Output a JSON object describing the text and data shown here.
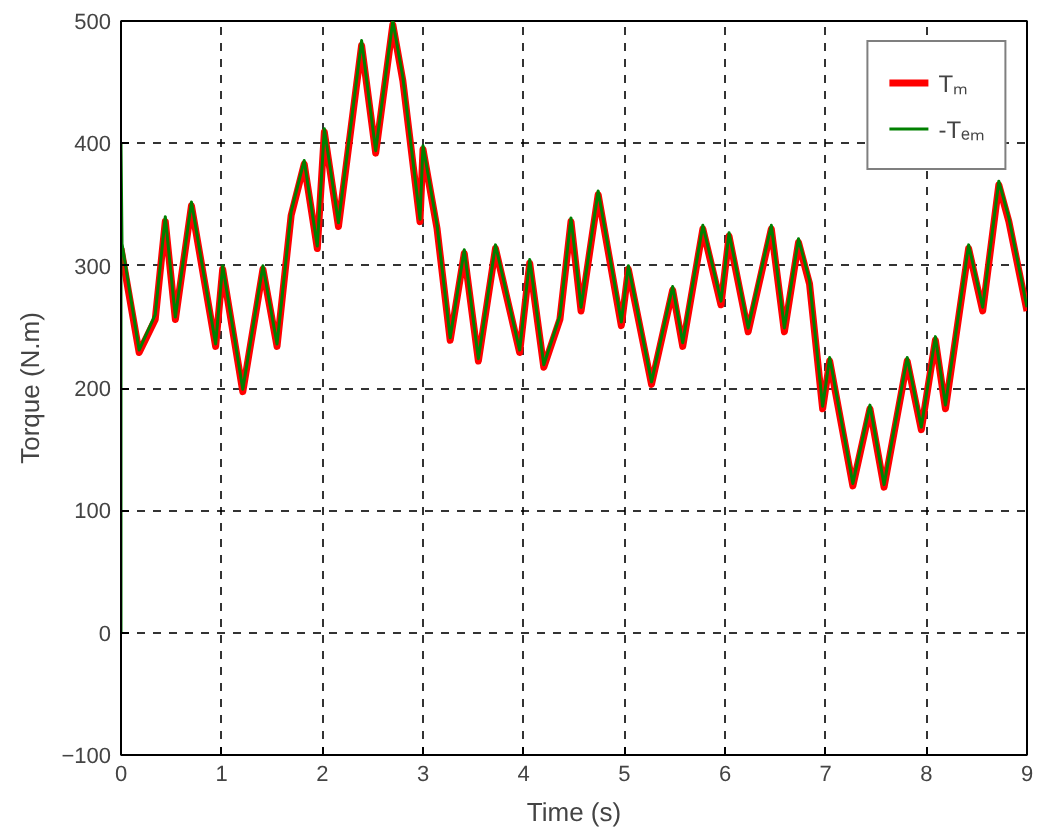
{
  "chart_data": {
    "type": "line",
    "xlabel": "Time (s)",
    "ylabel": "Torque (N.m)",
    "xlim": [
      0,
      9
    ],
    "ylim": [
      -100,
      500
    ],
    "xticks": [
      0,
      1,
      2,
      3,
      4,
      5,
      6,
      7,
      8,
      9
    ],
    "yticks": [
      -100,
      0,
      100,
      200,
      300,
      400,
      500
    ],
    "grid": true,
    "legend": "top right",
    "line_style": "solid",
    "x": [
      0,
      0.18,
      0.34,
      0.44,
      0.54,
      0.7,
      0.94,
      1.01,
      1.21,
      1.41,
      1.55,
      1.69,
      1.82,
      1.95,
      2.02,
      2.16,
      2.39,
      2.53,
      2.7,
      2.8,
      2.97,
      3.0,
      3.14,
      3.27,
      3.41,
      3.55,
      3.72,
      3.96,
      4.06,
      4.2,
      4.36,
      4.47,
      4.57,
      4.74,
      4.97,
      5.04,
      5.27,
      5.48,
      5.58,
      5.78,
      5.96,
      6.04,
      6.23,
      6.46,
      6.59,
      6.73,
      6.84,
      6.97,
      7.04,
      7.27,
      7.44,
      7.58,
      7.81,
      7.95,
      8.09,
      8.19,
      8.42,
      8.56,
      8.72,
      8.82,
      9.0
    ],
    "series": [
      {
        "name": "Tₘ",
        "color": "#ff0000",
        "values": [
          314,
          229,
          256,
          336,
          256,
          349,
          234,
          297,
          197,
          297,
          234,
          341,
          383,
          314,
          409,
          332,
          480,
          392,
          497,
          451,
          336,
          395,
          330,
          239,
          310,
          222,
          314,
          229,
          302,
          217,
          256,
          336,
          263,
          358,
          251,
          297,
          203,
          280,
          234,
          330,
          268,
          324,
          246,
          330,
          246,
          319,
          285,
          183,
          222,
          120,
          183,
          119,
          222,
          166,
          239,
          183,
          314,
          263,
          366,
          336,
          263
        ]
      },
      {
        "name": "-Tₑₘ",
        "color": "#008000",
        "x": [
          0,
          0,
          0.01,
          0.18,
          0.34,
          0.44,
          0.54,
          0.7,
          0.94,
          1.01,
          1.21,
          1.41,
          1.55,
          1.69,
          1.82,
          1.95,
          2.02,
          2.16,
          2.39,
          2.53,
          2.7,
          2.8,
          2.97,
          3.0,
          3.14,
          3.27,
          3.41,
          3.55,
          3.72,
          3.96,
          4.06,
          4.2,
          4.36,
          4.47,
          4.57,
          4.74,
          4.97,
          5.04,
          5.27,
          5.48,
          5.58,
          5.78,
          5.96,
          6.04,
          6.23,
          6.46,
          6.59,
          6.73,
          6.84,
          6.97,
          7.04,
          7.27,
          7.44,
          7.58,
          7.81,
          7.95,
          8.09,
          8.19,
          8.42,
          8.56,
          8.72,
          8.82,
          9.0
        ],
        "values": [
          0,
          400,
          318,
          231,
          260,
          340,
          258,
          352,
          236,
          300,
          199,
          300,
          236,
          344,
          386,
          316,
          412,
          335,
          484,
          394,
          500,
          454,
          338,
          398,
          333,
          241,
          313,
          224,
          317,
          231,
          305,
          219,
          259,
          339,
          266,
          361,
          254,
          300,
          205,
          283,
          237,
          333,
          271,
          327,
          249,
          333,
          249,
          322,
          288,
          185,
          225,
          122,
          186,
          121,
          225,
          168,
          242,
          186,
          317,
          266,
          369,
          339,
          266
        ]
      }
    ]
  }
}
